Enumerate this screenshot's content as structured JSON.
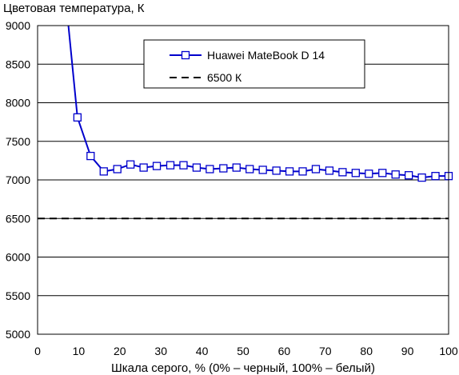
{
  "chart_data": {
    "type": "line",
    "title": "",
    "ylabel": "Цветовая температура, К",
    "xlabel": "Шкала серого, % (0% – черный, 100% – белый)",
    "xlim": [
      0,
      100
    ],
    "ylim": [
      5000,
      9000
    ],
    "xticks": [
      0,
      10,
      20,
      30,
      40,
      50,
      60,
      70,
      80,
      90,
      100
    ],
    "yticks": [
      5000,
      5500,
      6000,
      6500,
      7000,
      7500,
      8000,
      8500,
      9000
    ],
    "grid": "horizontal",
    "legend_position": "top-center",
    "series": [
      {
        "name": "Huawei MateBook D 14",
        "color": "#0000cc",
        "marker": "square",
        "x": [
          7.5,
          9.7,
          12.9,
          16.1,
          19.4,
          22.6,
          25.8,
          29.0,
          32.3,
          35.5,
          38.7,
          41.9,
          45.2,
          48.4,
          51.6,
          54.8,
          58.1,
          61.3,
          64.5,
          67.7,
          71.0,
          74.2,
          77.4,
          80.6,
          83.9,
          87.1,
          90.3,
          93.5,
          96.8,
          100
        ],
        "values": [
          9000,
          7810,
          7310,
          7110,
          7140,
          7200,
          7160,
          7180,
          7190,
          7190,
          7160,
          7140,
          7150,
          7160,
          7140,
          7130,
          7120,
          7110,
          7110,
          7140,
          7120,
          7100,
          7090,
          7080,
          7090,
          7070,
          7060,
          7030,
          7050,
          7050
        ],
        "marked": [
          false,
          true,
          true,
          true,
          true,
          true,
          true,
          true,
          true,
          true,
          true,
          true,
          true,
          true,
          true,
          true,
          true,
          true,
          true,
          true,
          true,
          true,
          true,
          true,
          true,
          true,
          true,
          true,
          true,
          true
        ]
      },
      {
        "name": "6500 К",
        "color": "#000000",
        "style": "dashed",
        "x": [
          0,
          100
        ],
        "values": [
          6500,
          6500
        ]
      }
    ]
  }
}
